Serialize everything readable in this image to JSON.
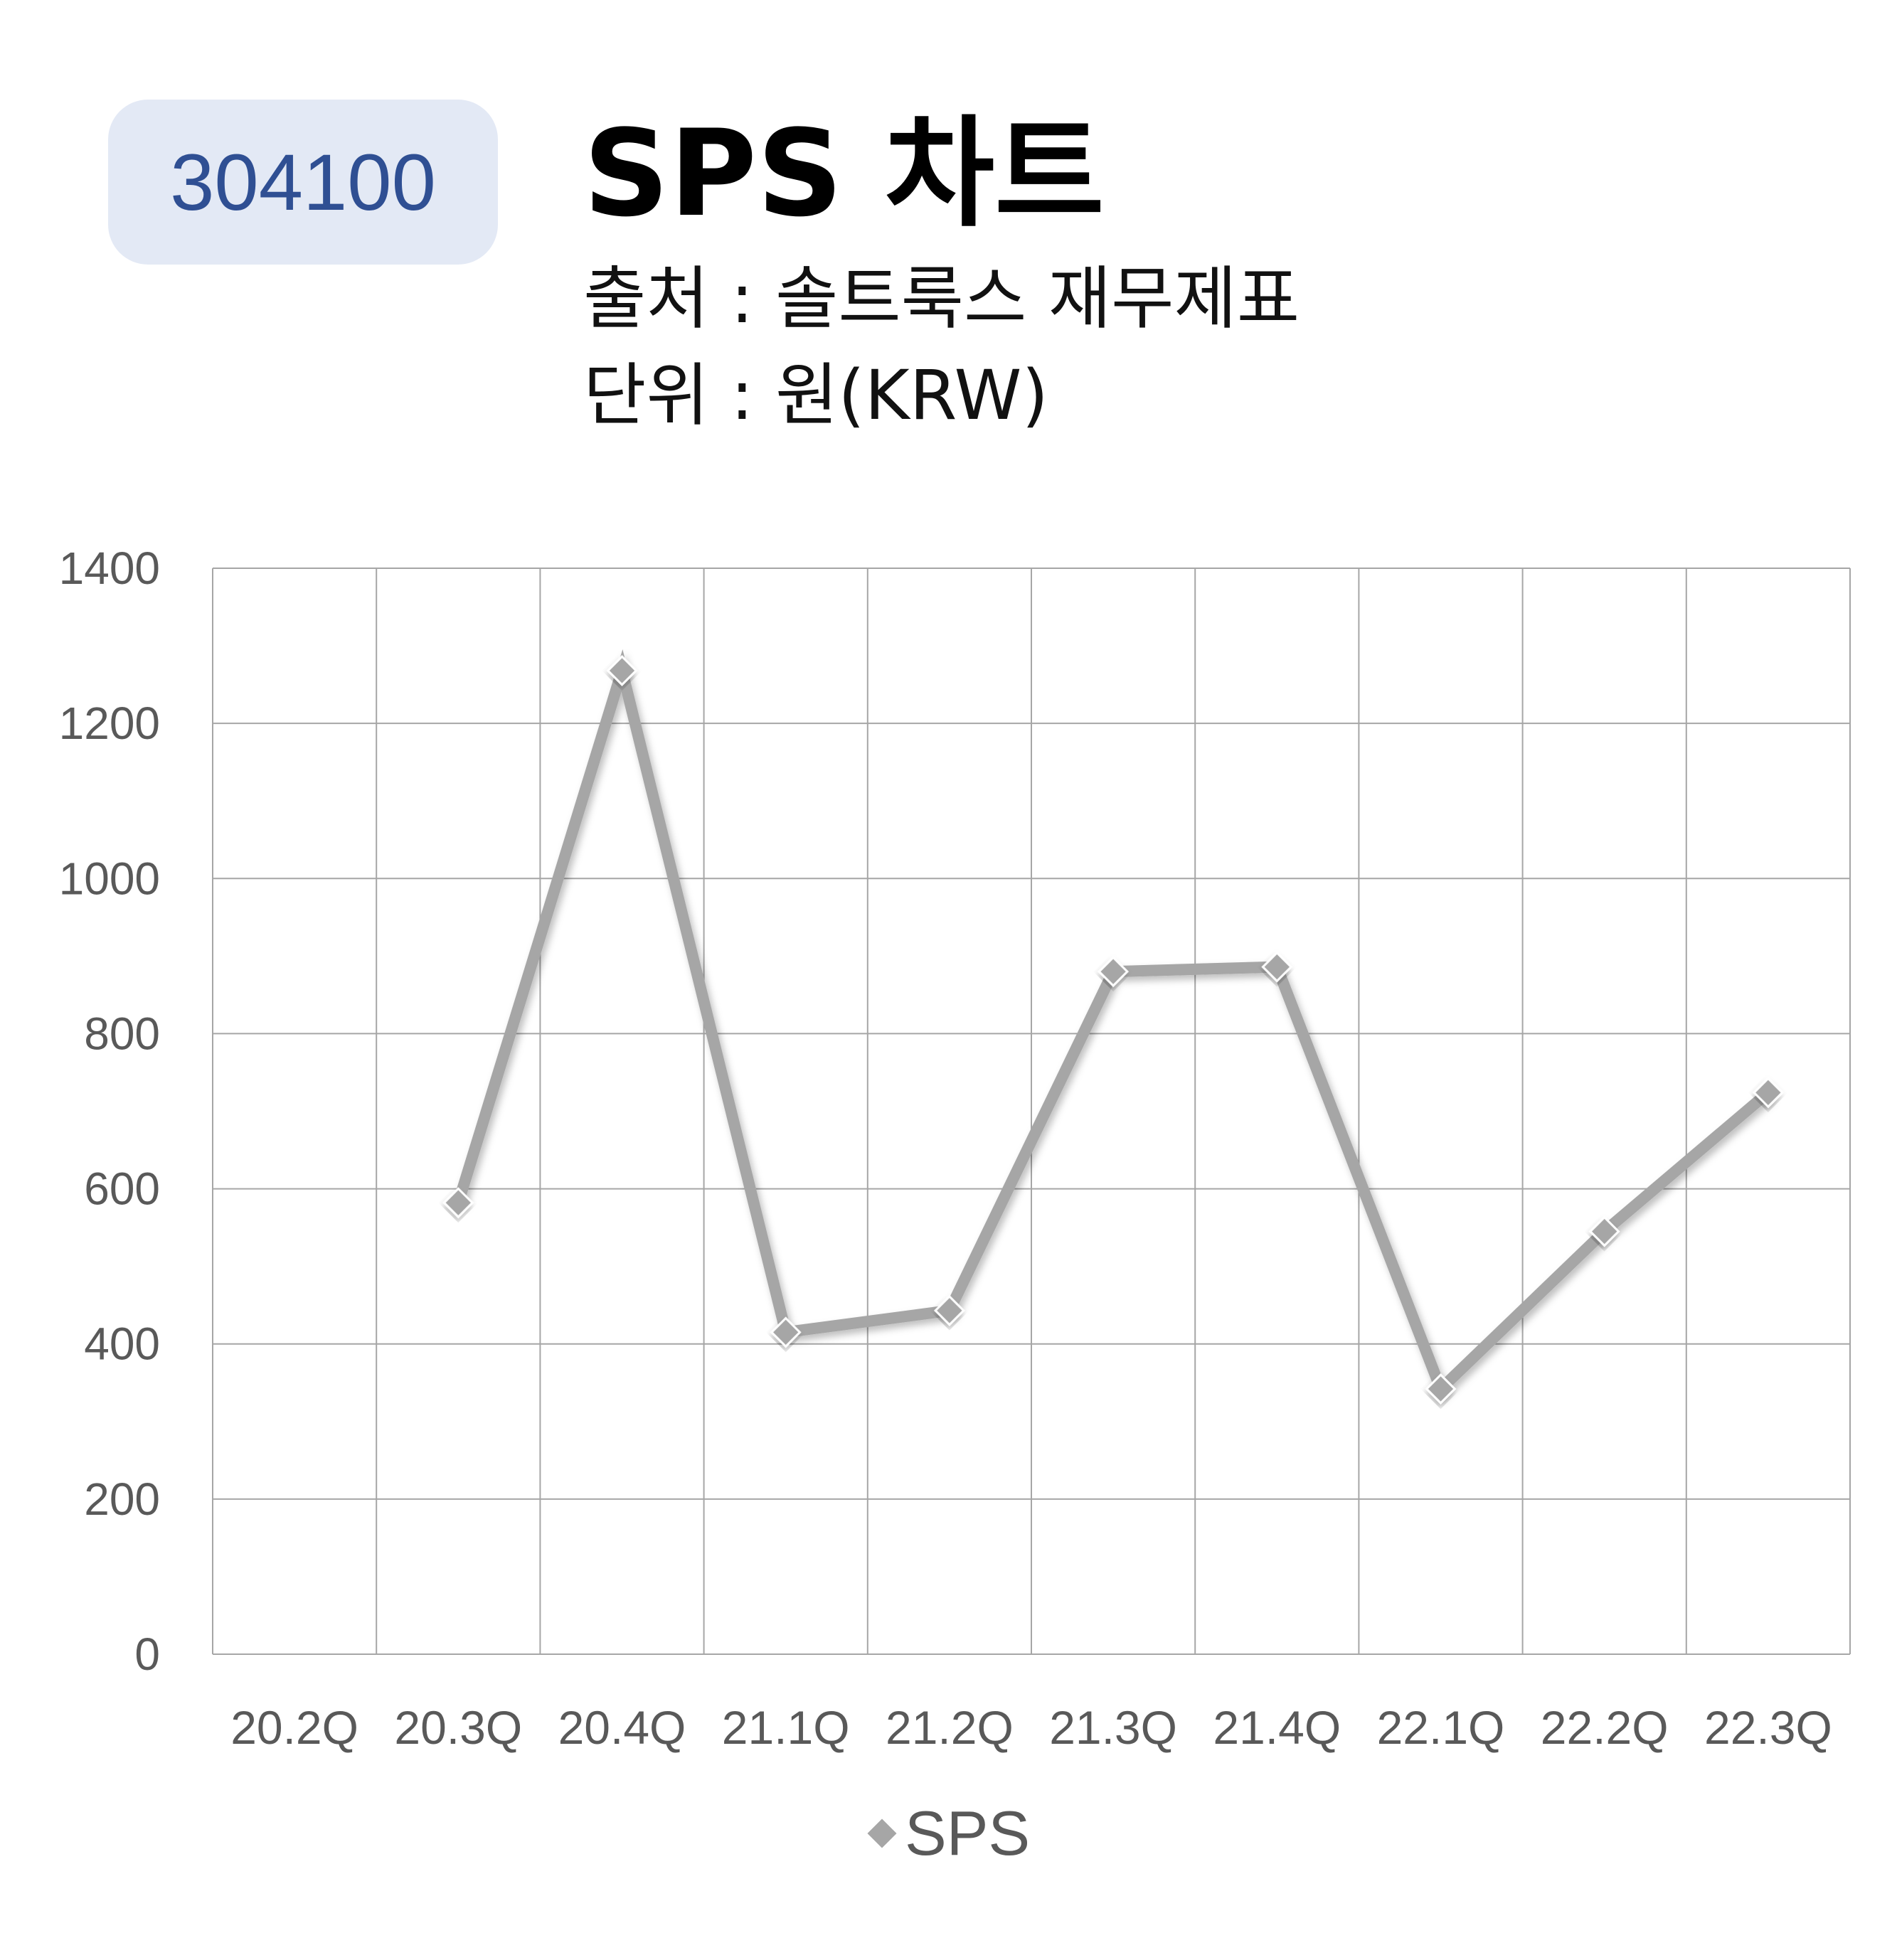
{
  "header": {
    "code": "304100",
    "title": "SPS 차트",
    "source": "출처 : 솔트룩스 재무제표",
    "unit": "단위 : 원(KRW)"
  },
  "colors": {
    "badge_bg": "#e3e9f5",
    "badge_text": "#2f4f93",
    "series": "#a6a6a6",
    "grid": "#a6a6a6",
    "tick_text": "#595959"
  },
  "chart_data": {
    "type": "line",
    "categories": [
      "20.2Q",
      "20.3Q",
      "20.4Q",
      "21.1Q",
      "21.2Q",
      "21.3Q",
      "21.4Q",
      "22.1Q",
      "22.2Q",
      "22.3Q"
    ],
    "series": [
      {
        "name": "SPS",
        "values": [
          null,
          582,
          1268,
          415,
          443,
          880,
          886,
          342,
          545,
          724
        ],
        "marker": "diamond"
      }
    ],
    "ylim": [
      0,
      1400
    ],
    "yticks": [
      0,
      200,
      400,
      600,
      800,
      1000,
      1200,
      1400
    ],
    "grid": true,
    "legend": "bottom"
  }
}
